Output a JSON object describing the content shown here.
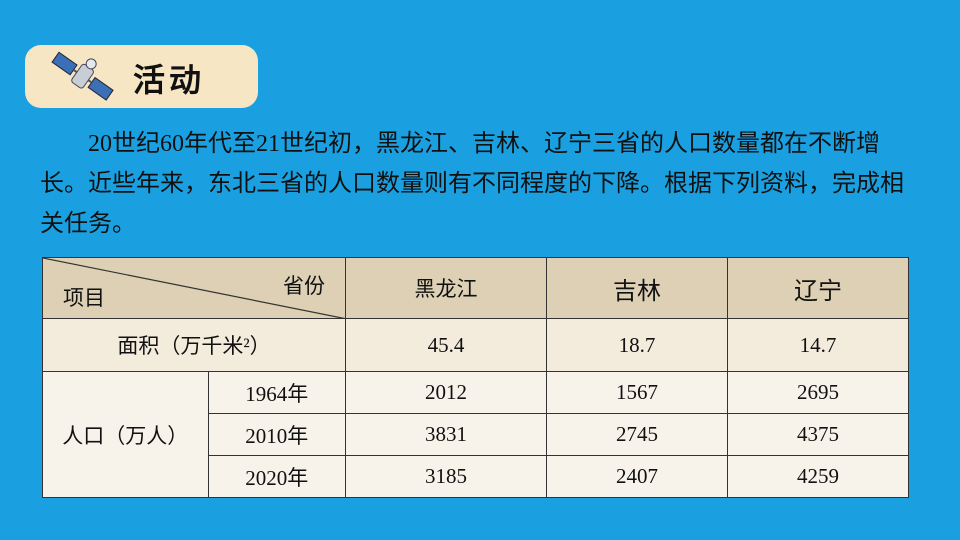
{
  "header": {
    "title": "活动"
  },
  "paragraph": "20世纪60年代至21世纪初，黑龙江、吉林、辽宁三省的人口数量都在不断增长。近些年来，东北三省的人口数量则有不同程度的下降。根据下列资料，完成相关任务。",
  "table": {
    "corner": {
      "top": "省份",
      "bottom": "项目"
    },
    "columns": [
      "黑龙江",
      "吉林",
      "辽宁"
    ],
    "area_row": {
      "label": "面积（万千米²）",
      "values": [
        45.4,
        18.7,
        14.7
      ]
    },
    "population": {
      "label": "人口（万人）",
      "rows": [
        {
          "year": "1964年",
          "values": [
            2012,
            1567,
            2695
          ]
        },
        {
          "year": "2010年",
          "values": [
            3831,
            2745,
            4375
          ]
        },
        {
          "year": "2020年",
          "values": [
            3185,
            2407,
            4259
          ]
        }
      ]
    }
  }
}
